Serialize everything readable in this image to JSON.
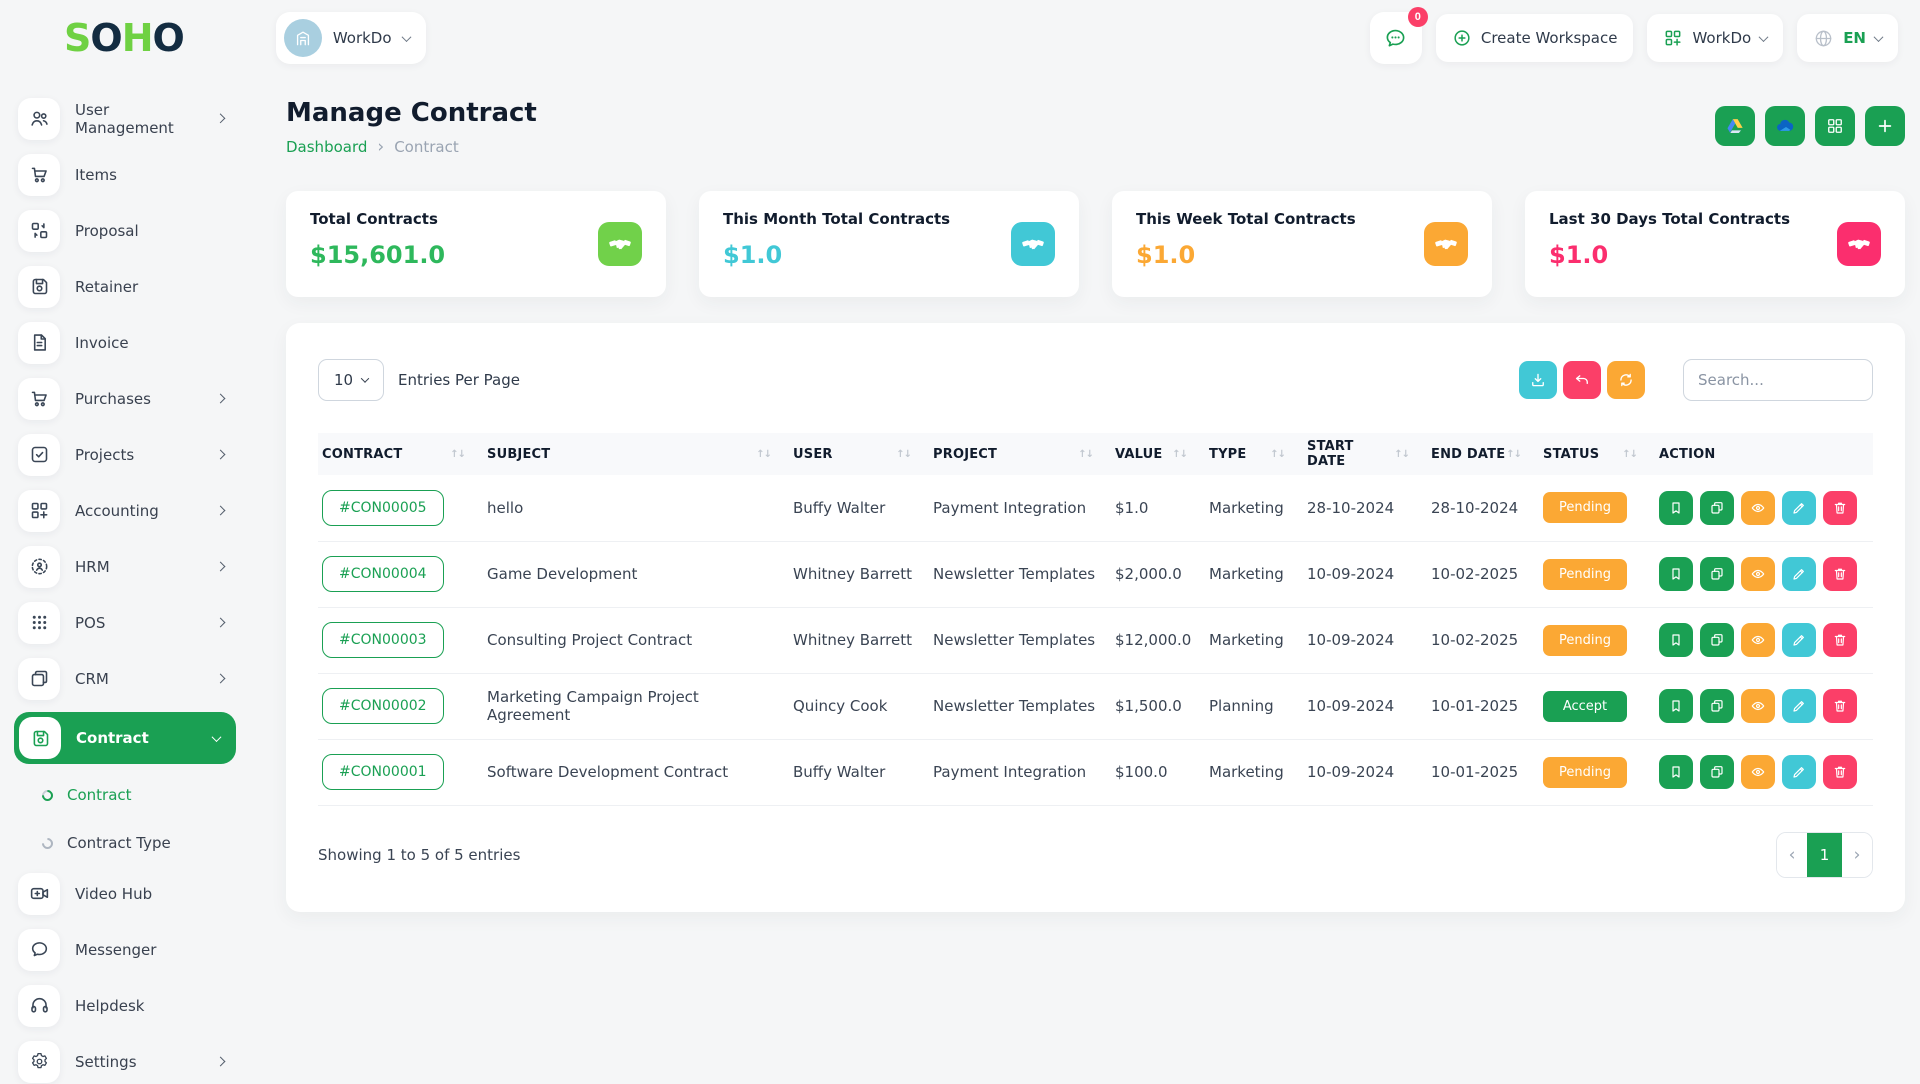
{
  "topbar": {
    "logo_letters": [
      {
        "char": "S",
        "color": "#6fd143"
      },
      {
        "char": "O",
        "color": "#132c41"
      },
      {
        "char": "H",
        "color": "#6fd143"
      },
      {
        "char": "O",
        "color": "#132c41"
      }
    ],
    "workspace_switcher": {
      "label": "WorkDo",
      "icon": "building"
    },
    "messages": {
      "badge": "0"
    },
    "create_workspace_label": "Create Workspace",
    "workdo_menu_label": "WorkDo",
    "language": {
      "code": "EN"
    }
  },
  "sidebar": {
    "items": [
      {
        "label": "User Management",
        "icon": "users",
        "chevron": true
      },
      {
        "label": "Items",
        "icon": "cart"
      },
      {
        "label": "Proposal",
        "icon": "swap-grid"
      },
      {
        "label": "Retainer",
        "icon": "save"
      },
      {
        "label": "Invoice",
        "icon": "file-invoice"
      },
      {
        "label": "Purchases",
        "icon": "cart",
        "chevron": true
      },
      {
        "label": "Projects",
        "icon": "check-square",
        "chevron": true
      },
      {
        "label": "Accounting",
        "icon": "grid-plus",
        "chevron": true
      },
      {
        "label": "HRM",
        "icon": "person-dashed",
        "chevron": true
      },
      {
        "label": "POS",
        "icon": "dots-grid",
        "chevron": true
      },
      {
        "label": "CRM",
        "icon": "app-window",
        "chevron": true
      },
      {
        "label": "Contract",
        "icon": "save",
        "active": true,
        "expanded": true,
        "submenu": [
          {
            "label": "Contract",
            "active": true
          },
          {
            "label": "Contract Type",
            "active": false
          }
        ]
      },
      {
        "label": "Video Hub",
        "icon": "video"
      },
      {
        "label": "Messenger",
        "icon": "chat"
      },
      {
        "label": "Helpdesk",
        "icon": "headset"
      },
      {
        "label": "Settings",
        "icon": "gear",
        "chevron": true
      }
    ]
  },
  "page": {
    "title": "Manage Contract",
    "breadcrumb": [
      {
        "label": "Dashboard"
      },
      {
        "label": "Contract"
      }
    ],
    "header_actions": [
      {
        "name": "google-drive",
        "icon": "google-drive",
        "bg": "#1aa053"
      },
      {
        "name": "onedrive",
        "icon": "onedrive",
        "bg": "#1aa053"
      },
      {
        "name": "grid-view",
        "icon": "grid",
        "bg": "#1aa053"
      },
      {
        "name": "add-contract",
        "icon": "plus",
        "bg": "#1aa053"
      }
    ]
  },
  "stat_cards": [
    {
      "label": "Total Contracts",
      "value": "$15,601.0",
      "value_color": "#2eb85c",
      "icon": "handshake",
      "icon_bg": "#71d14a"
    },
    {
      "label": "This Month Total Contracts",
      "value": "$1.0",
      "value_color": "#41c8d6",
      "icon": "handshake",
      "icon_bg": "#41c8d6"
    },
    {
      "label": "This Week Total Contracts",
      "value": "$1.0",
      "value_color": "#fba834",
      "icon": "handshake",
      "icon_bg": "#fba834"
    },
    {
      "label": "Last 30 Days Total Contracts",
      "value": "$1.0",
      "value_color": "#fb2e6e",
      "icon": "handshake",
      "icon_bg": "#fb2e6e"
    }
  ],
  "table": {
    "entries_per_page": "10",
    "entries_label": "Entries Per Page",
    "search_placeholder": "Search...",
    "toolbar_buttons": [
      {
        "name": "export",
        "icon": "download",
        "bg": "#41c8d6"
      },
      {
        "name": "undo",
        "icon": "undo",
        "bg": "#fb3f68"
      },
      {
        "name": "refresh",
        "icon": "refresh",
        "bg": "#fba834"
      }
    ],
    "columns": [
      "CONTRACT",
      "SUBJECT",
      "USER",
      "PROJECT",
      "VALUE",
      "TYPE",
      "START DATE",
      "END DATE",
      "STATUS",
      "ACTION"
    ],
    "rows": [
      {
        "contract": "#CON00005",
        "subject": "hello",
        "user": "Buffy Walter",
        "project": "Payment Integration",
        "value": "$1.0",
        "type": "Marketing",
        "start_date": "28-10-2024",
        "end_date": "28-10-2024",
        "status": "Pending",
        "status_color": "#fba834"
      },
      {
        "contract": "#CON00004",
        "subject": "Game Development",
        "user": "Whitney Barrett",
        "project": "Newsletter Templates",
        "value": "$2,000.0",
        "type": "Marketing",
        "start_date": "10-09-2024",
        "end_date": "10-02-2025",
        "status": "Pending",
        "status_color": "#fba834"
      },
      {
        "contract": "#CON00003",
        "subject": "Consulting Project Contract",
        "user": "Whitney Barrett",
        "project": "Newsletter Templates",
        "value": "$12,000.0",
        "type": "Marketing",
        "start_date": "10-09-2024",
        "end_date": "10-02-2025",
        "status": "Pending",
        "status_color": "#fba834"
      },
      {
        "contract": "#CON00002",
        "subject": "Marketing Campaign Project Agreement",
        "user": "Quincy Cook",
        "project": "Newsletter Templates",
        "value": "$1,500.0",
        "type": "Planning",
        "start_date": "10-09-2024",
        "end_date": "10-01-2025",
        "status": "Accept",
        "status_color": "#1aa053"
      },
      {
        "contract": "#CON00001",
        "subject": "Software Development Contract",
        "user": "Buffy Walter",
        "project": "Payment Integration",
        "value": "$100.0",
        "type": "Marketing",
        "start_date": "10-09-2024",
        "end_date": "10-01-2025",
        "status": "Pending",
        "status_color": "#fba834"
      }
    ],
    "row_actions": [
      {
        "name": "bookmark",
        "icon": "bookmark",
        "bg": "#1aa053"
      },
      {
        "name": "duplicate",
        "icon": "copy",
        "bg": "#1aa053"
      },
      {
        "name": "view",
        "icon": "eye",
        "bg": "#fba834"
      },
      {
        "name": "edit",
        "icon": "pencil",
        "bg": "#41c8d6"
      },
      {
        "name": "delete",
        "icon": "trash",
        "bg": "#fb3f68"
      }
    ],
    "footer": {
      "showing_text": "Showing 1 to 5 of 5 entries",
      "pagination": {
        "prev": "‹",
        "active_page": "1",
        "next": "›"
      }
    }
  }
}
